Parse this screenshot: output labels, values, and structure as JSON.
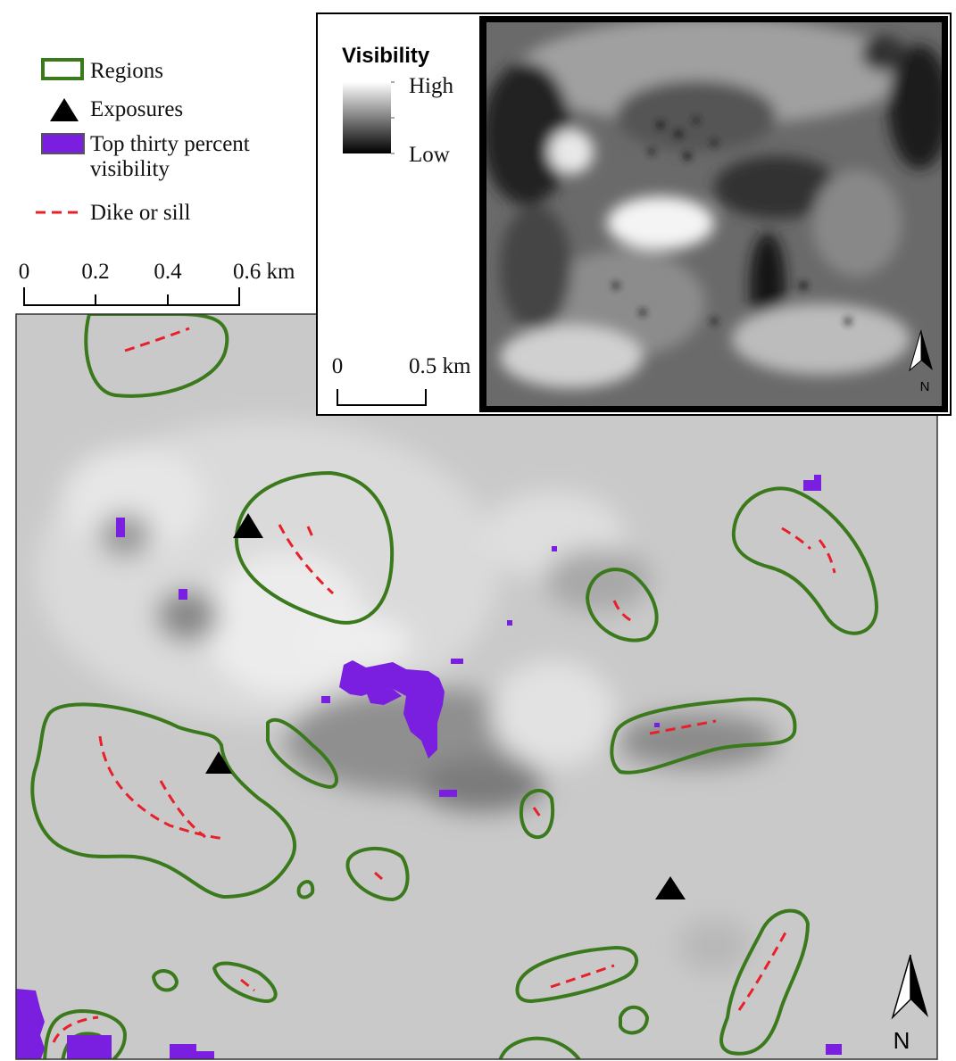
{
  "legend": {
    "items": [
      {
        "label": "Regions"
      },
      {
        "label": "Exposures"
      },
      {
        "label": [
          "Top thirty percent",
          "visibility"
        ]
      },
      {
        "label": "Dike or sill"
      }
    ]
  },
  "scale_bar": {
    "labels": [
      "0",
      "0.2",
      "0.4",
      "0.6 km"
    ]
  },
  "map": {
    "north": "N"
  },
  "inset": {
    "title": "Visibility",
    "high": "High",
    "low": "Low",
    "scale_bar": {
      "labels": [
        "0",
        "0.5 km"
      ]
    },
    "north": "N"
  }
}
